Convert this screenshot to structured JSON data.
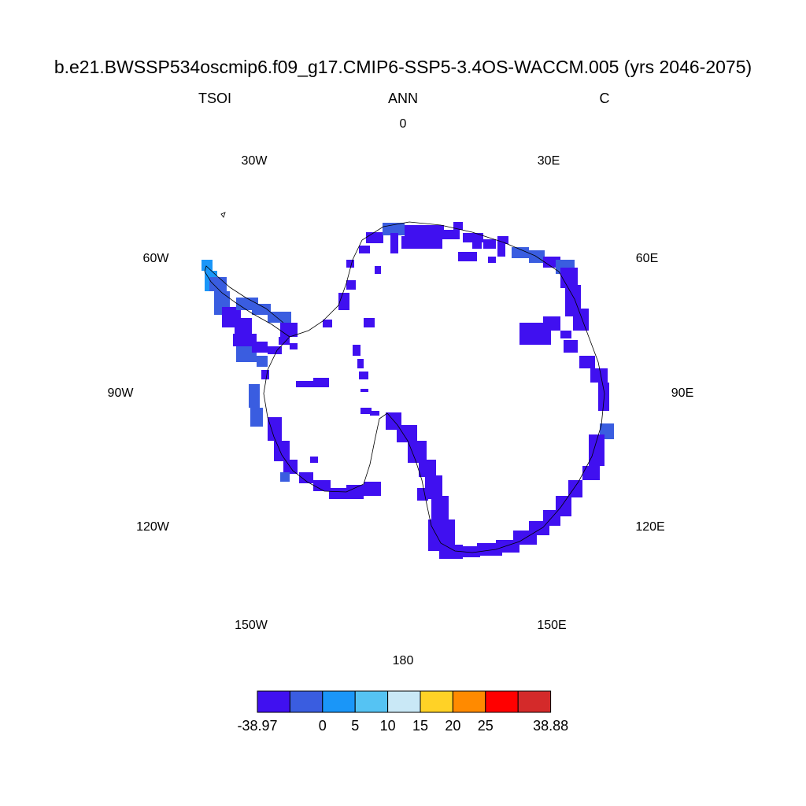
{
  "header": {
    "title": "b.e21.BWSSP534oscmip6.f09_g17.CMIP6-SSP5-3.4OS-WACCM.005 (yrs 2046-2075)",
    "variable": "TSOI",
    "season": "ANN",
    "units": "C"
  },
  "longitude_labels": [
    {
      "key": "lon_0",
      "text": "0"
    },
    {
      "key": "lon_30w",
      "text": "30W"
    },
    {
      "key": "lon_30e",
      "text": "30E"
    },
    {
      "key": "lon_60w",
      "text": "60W"
    },
    {
      "key": "lon_60e",
      "text": "60E"
    },
    {
      "key": "lon_90w",
      "text": "90W"
    },
    {
      "key": "lon_90e",
      "text": "90E"
    },
    {
      "key": "lon_120w",
      "text": "120W"
    },
    {
      "key": "lon_120e",
      "text": "120E"
    },
    {
      "key": "lon_150w",
      "text": "150W"
    },
    {
      "key": "lon_150e",
      "text": "150E"
    },
    {
      "key": "lon_180",
      "text": "180"
    }
  ],
  "colorbar": {
    "colors": [
      "#4010f0",
      "#3a5de0",
      "#1a96f8",
      "#55c3f3",
      "#c9e8f6",
      "#ffd226",
      "#ff8a00",
      "#ff0000",
      "#d42a2a"
    ],
    "labels": [
      "-38.97",
      "0",
      "5",
      "10",
      "15",
      "20",
      "25",
      "38.88"
    ]
  },
  "map": {
    "projection": "south polar stereographic",
    "main_fill_color": "#4010f0",
    "secondary_fill_color": "#3a5de0",
    "accent_fill_color": "#1a96f8",
    "coastline_color": "#000000"
  }
}
